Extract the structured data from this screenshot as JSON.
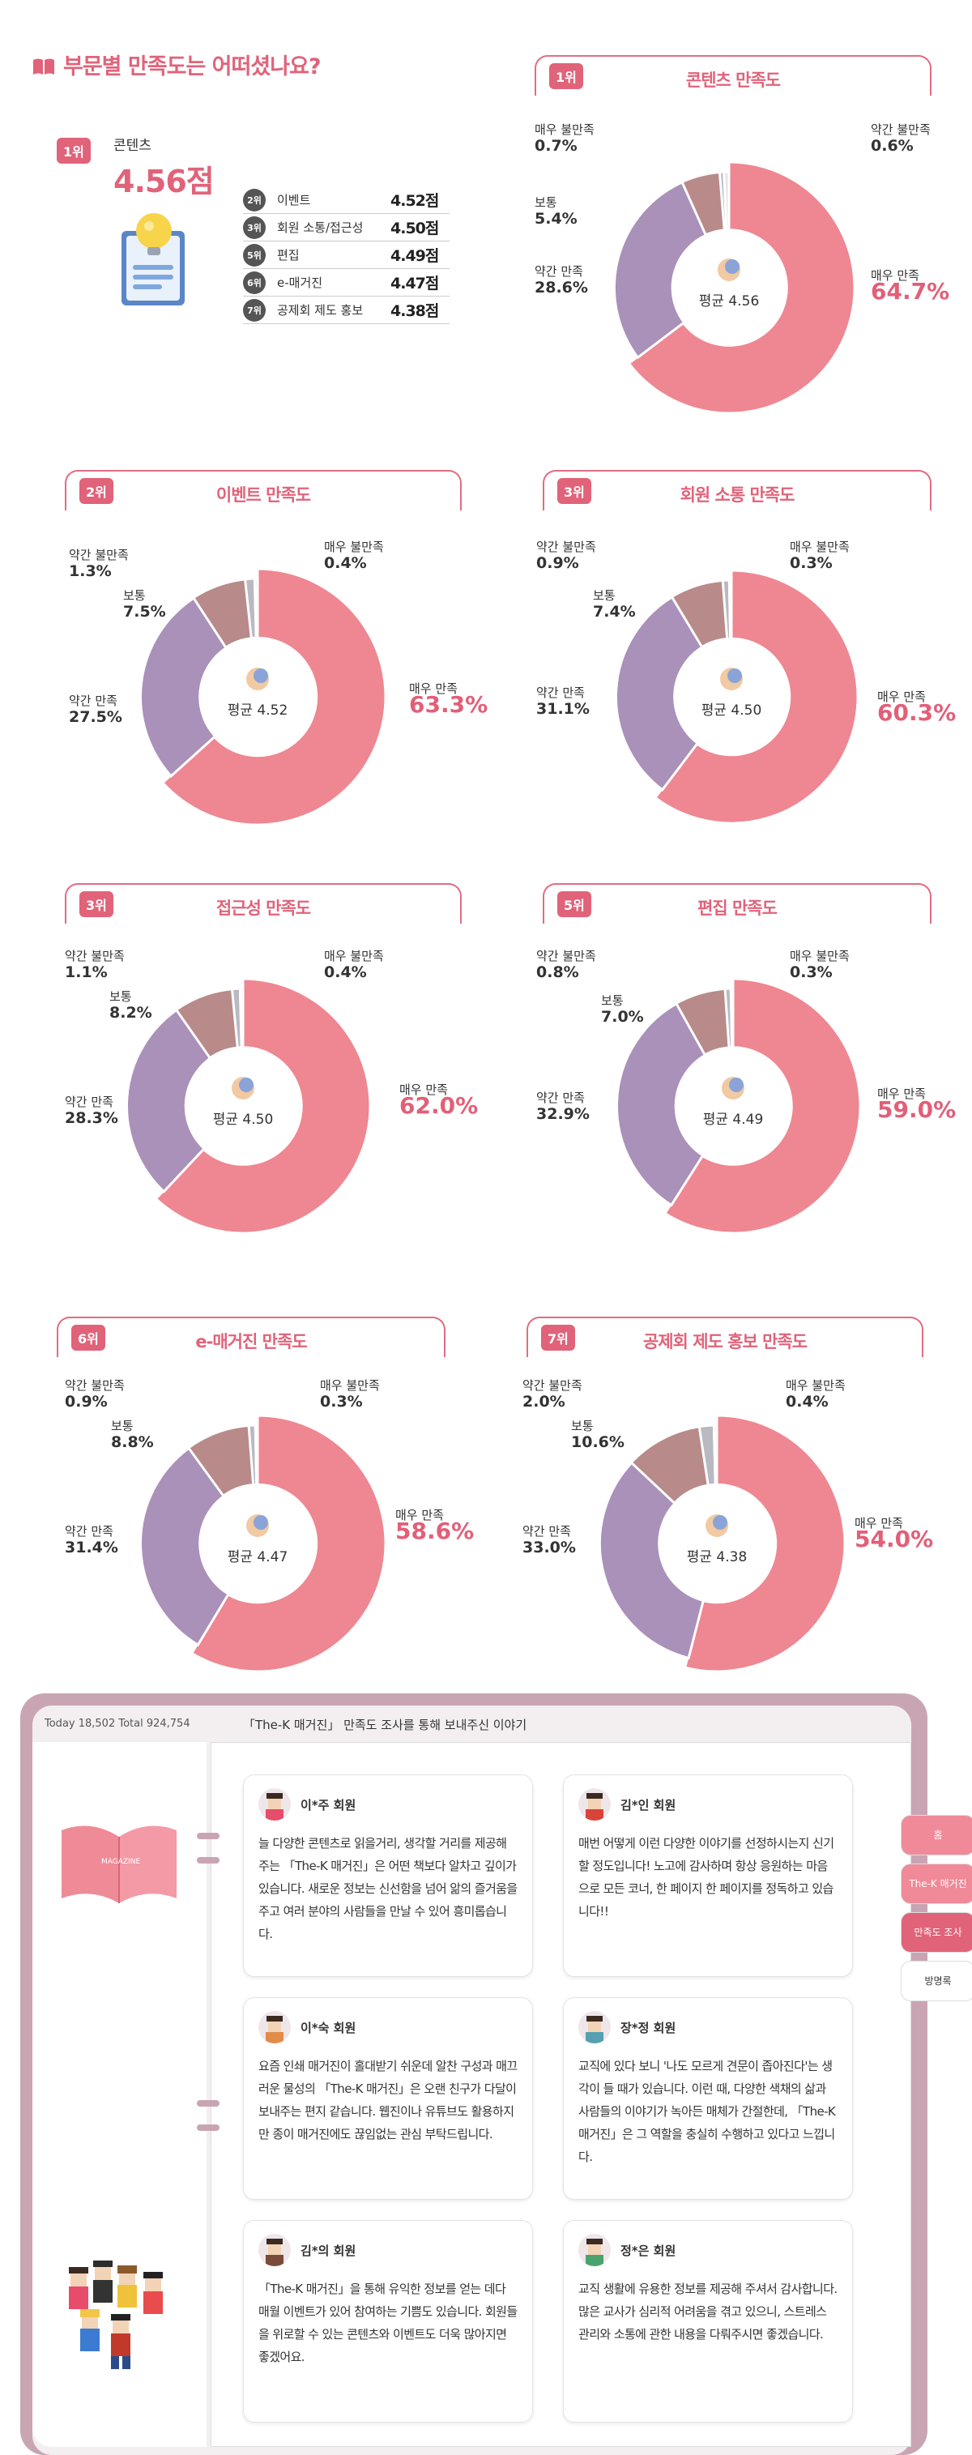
{
  "header": {
    "title": "부문별 만족도는 어떠셨나요?"
  },
  "summary": {
    "top_rank": "1위",
    "top_name": "콘텐츠",
    "top_score": "4.56점",
    "ranks": [
      {
        "rank": "2위",
        "name": "이벤트",
        "score": "4.52점"
      },
      {
        "rank": "3위",
        "name": "회원 소통/접근성",
        "score": "4.50점"
      },
      {
        "rank": "5위",
        "name": "편집",
        "score": "4.49점"
      },
      {
        "rank": "6위",
        "name": "e-매거진",
        "score": "4.47점"
      },
      {
        "rank": "7위",
        "name": "공제회 제도 홍보",
        "score": "4.38점"
      }
    ]
  },
  "labels": {
    "very_sat": "매우 만족",
    "sat": "약간 만족",
    "neutral": "보통",
    "dis": "약간 불만족",
    "very_dis": "매우 불만족"
  },
  "colors": {
    "very_sat": "#ee8791",
    "sat": "#a991b9",
    "neutral": "#b88a8a",
    "dis": "#b9b9c2",
    "very_dis": "#e6e6e9",
    "accent": "#e0637a"
  },
  "chart_data": [
    {
      "type": "pie",
      "rank": "1위",
      "title": "콘텐츠 만족도",
      "center": "평균 4.56",
      "icon": "pen-nib-icon",
      "categories": [
        "매우 만족",
        "약간 만족",
        "보통",
        "약간 불만족",
        "매우 불만족"
      ],
      "values": [
        64.7,
        28.6,
        5.4,
        0.6,
        0.7
      ],
      "value_labels": [
        "64.7%",
        "28.6%",
        "5.4%",
        "0.6%",
        "0.7%"
      ]
    },
    {
      "type": "pie",
      "rank": "2위",
      "title": "이벤트 만족도",
      "center": "평균 4.52",
      "icon": "gift-icon",
      "categories": [
        "매우 만족",
        "약간 만족",
        "보통",
        "약간 불만족",
        "매우 불만족"
      ],
      "values": [
        63.3,
        27.5,
        7.5,
        1.3,
        0.4
      ],
      "value_labels": [
        "63.3%",
        "27.5%",
        "7.5%",
        "1.3%",
        "0.4%"
      ]
    },
    {
      "type": "pie",
      "rank": "3위",
      "title": "회원 소통 만족도",
      "center": "평균 4.50",
      "icon": "chat-bubble-icon",
      "categories": [
        "매우 만족",
        "약간 만족",
        "보통",
        "약간 불만족",
        "매우 불만족"
      ],
      "values": [
        60.3,
        31.1,
        7.4,
        0.9,
        0.3
      ],
      "value_labels": [
        "60.3%",
        "31.1%",
        "7.4%",
        "0.9%",
        "0.3%"
      ]
    },
    {
      "type": "pie",
      "rank": "3위",
      "title": "접근성 만족도",
      "center": "평균 4.50",
      "icon": "pointer-hand-icon",
      "categories": [
        "매우 만족",
        "약간 만족",
        "보통",
        "약간 불만족",
        "매우 불만족"
      ],
      "values": [
        62.0,
        28.3,
        8.2,
        1.1,
        0.4
      ],
      "value_labels": [
        "62.0%",
        "28.3%",
        "8.2%",
        "1.1%",
        "0.4%"
      ]
    },
    {
      "type": "pie",
      "rank": "5위",
      "title": "편집 만족도",
      "center": "평균 4.49",
      "icon": "paper-icon",
      "categories": [
        "매우 만족",
        "약간 만족",
        "보통",
        "약간 불만족",
        "매우 불만족"
      ],
      "values": [
        59.0,
        32.9,
        7.0,
        0.8,
        0.3
      ],
      "value_labels": [
        "59.0%",
        "32.9%",
        "7.0%",
        "0.8%",
        "0.3%"
      ]
    },
    {
      "type": "pie",
      "rank": "6위",
      "title": "e-매거진 만족도",
      "center": "평균 4.47",
      "icon": "magazine-icon",
      "categories": [
        "매우 만족",
        "약간 만족",
        "보통",
        "약간 불만족",
        "매우 불만족"
      ],
      "values": [
        58.6,
        31.4,
        8.8,
        0.9,
        0.3
      ],
      "value_labels": [
        "58.6%",
        "31.4%",
        "8.8%",
        "0.9%",
        "0.3%"
      ]
    },
    {
      "type": "pie",
      "rank": "7위",
      "title": "공제회 제도 홍보 만족도",
      "center": "평균 4.38",
      "icon": "megaphone-icon",
      "categories": [
        "매우 만족",
        "약간 만족",
        "보통",
        "약간 불만족",
        "매우 불만족"
      ],
      "values": [
        54.0,
        33.0,
        10.6,
        2.0,
        0.4
      ],
      "value_labels": [
        "54.0%",
        "33.0%",
        "10.6%",
        "2.0%",
        "0.4%"
      ]
    }
  ],
  "guestbook": {
    "visit": "Today 18,502   Total 924,754",
    "title": "「The-K 매거진」 만족도 조사를 통해 보내주신 이야기",
    "magazine_label": "MAGAZINE",
    "tabs": [
      "홈",
      "The-K 매거진",
      "만족도 조사",
      "방명록"
    ],
    "comments": [
      {
        "name": "이*주 회원",
        "text": "늘 다양한 콘텐츠로 읽을거리, 생각할 거리를 제공해 주는 「The-K 매거진」은 어떤 책보다 알차고 깊이가 있습니다. 새로운 정보는 신선함을 넘어 앎의 즐거움을 주고 여러 분야의 사람들을 만날 수 있어 흥미롭습니다."
      },
      {
        "name": "김*인 회원",
        "text": "매번 어떻게 이런 다양한 이야기를 선정하시는지 신기할 정도입니다! 노고에 감사하며 항상 응원하는 마음으로 모든 코너, 한 페이지 한 페이지를 정독하고 있습니다!!"
      },
      {
        "name": "이*숙 회원",
        "text": "요즘 인쇄 매거진이 홀대받기 쉬운데 알찬 구성과 매끄러운 물성의 「The-K 매거진」은 오랜 친구가 다달이 보내주는 편지 같습니다. 웹진이나 유튜브도 활용하지만 종이 매거진에도 끊임없는 관심 부탁드립니다."
      },
      {
        "name": "장*정 회원",
        "text": "교직에 있다 보니 '나도 모르게 견문이 좁아진다'는 생각이 들 때가 있습니다. 이런 때, 다양한 색채의 삶과 사람들의 이야기가 녹아든 매체가 간절한데, 「The-K 매거진」은 그 역할을 충실히 수행하고 있다고 느낍니다."
      },
      {
        "name": "김*의 회원",
        "text": "「The-K 매거진」을 통해 유익한 정보를 얻는 데다 매월 이벤트가 있어 참여하는 기쁨도 있습니다. 회원들을 위로할 수 있는 콘텐츠와 이벤트도 더욱 많아지면 좋겠어요."
      },
      {
        "name": "정*은 회원",
        "text": "교직 생활에 유용한 정보를 제공해 주셔서 감사합니다. 많은 교사가 심리적 어려움을 겪고 있으니, 스트레스 관리와 소통에 관한 내용을 다뤄주시면 좋겠습니다."
      }
    ]
  }
}
